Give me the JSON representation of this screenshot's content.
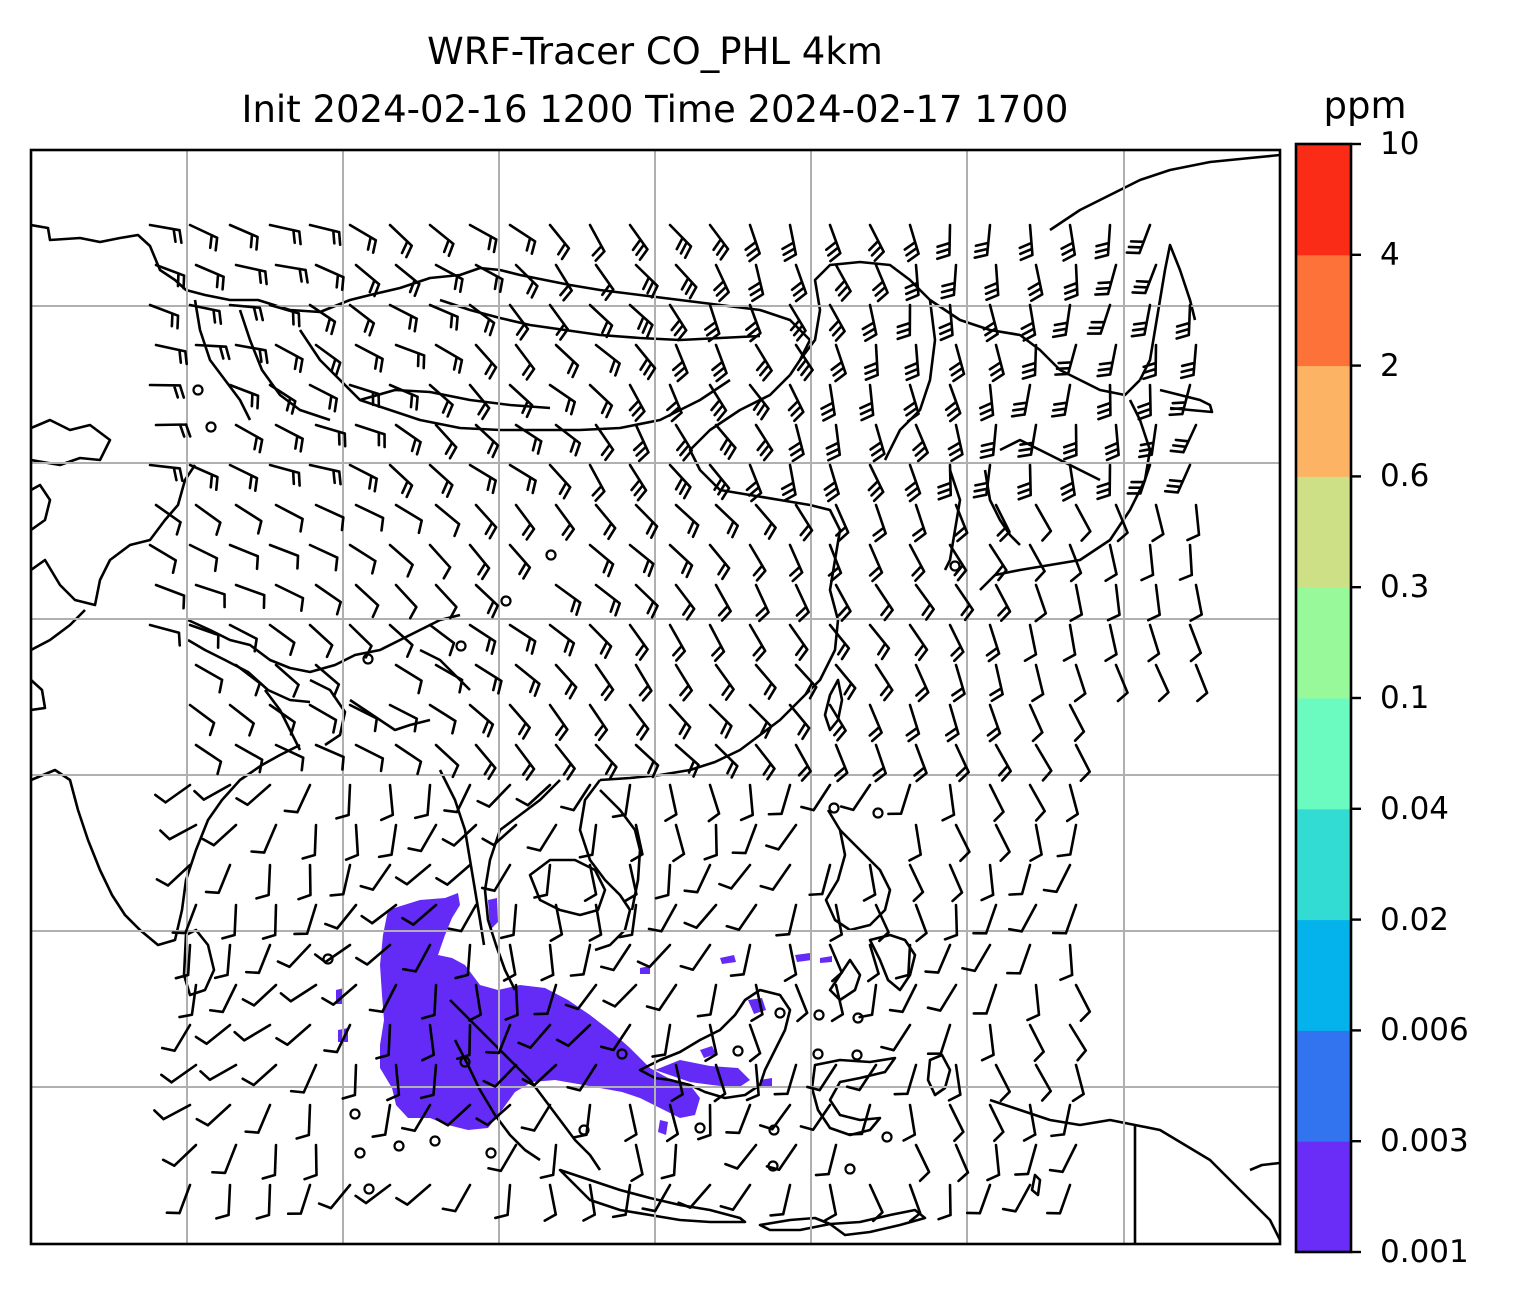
{
  "figure": {
    "title_line1": "WRF-Tracer CO_PHL 4km",
    "title_line2": "Init 2024-02-16 1200 Time 2024-02-17 1700"
  },
  "colorbar": {
    "unit": "ppm",
    "levels": [
      "0.001",
      "0.003",
      "0.006",
      "0.02",
      "0.04",
      "0.1",
      "0.3",
      "0.6",
      "2",
      "4",
      "10"
    ],
    "colors": [
      "#6a2cf7",
      "#3273f0",
      "#04b2ec",
      "#33dcd2",
      "#6bfbc0",
      "#98f99a",
      "#cde086",
      "#fcb364",
      "#fc7238",
      "#fa2c18"
    ]
  },
  "map": {
    "plume_color": "#652bf6",
    "coastline_color": "#000000",
    "grid_color": "#b0b0b0"
  }
}
